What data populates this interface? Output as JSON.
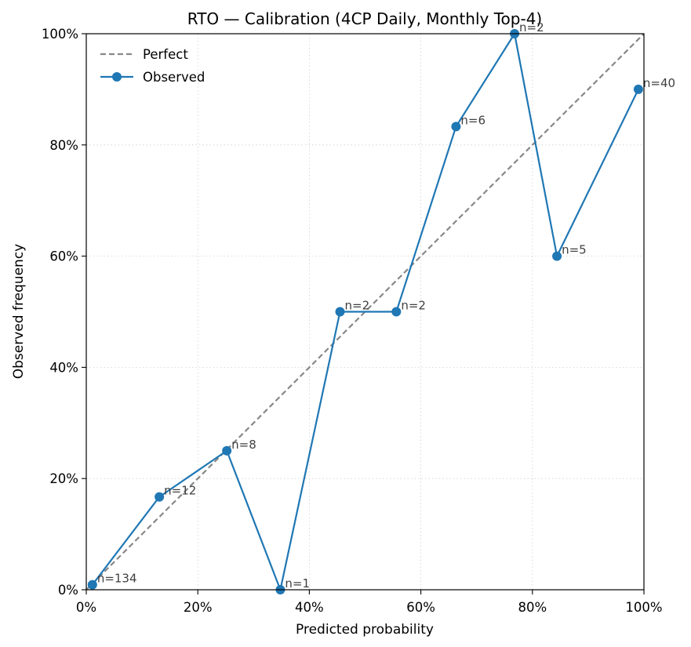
{
  "chart_data": {
    "type": "line",
    "title": "RTO — Calibration (4CP Daily,  Monthly Top-4)",
    "xlabel": "Predicted probability",
    "ylabel": "Observed frequency",
    "xlim": [
      0,
      1
    ],
    "ylim": [
      0,
      1
    ],
    "grid": true,
    "legend_position": "top-left",
    "x_ticks": [
      0,
      0.2,
      0.4,
      0.6,
      0.8,
      1.0
    ],
    "x_tick_labels": [
      "0%",
      "20%",
      "40%",
      "60%",
      "80%",
      "100%"
    ],
    "y_ticks": [
      0,
      0.2,
      0.4,
      0.6,
      0.8,
      1.0
    ],
    "y_tick_labels": [
      "0%",
      "20%",
      "40%",
      "60%",
      "80%",
      "100%"
    ],
    "series": [
      {
        "name": "Perfect",
        "style": "dashed",
        "color": "#888888",
        "x": [
          0,
          1
        ],
        "y": [
          0,
          1
        ]
      },
      {
        "name": "Observed",
        "style": "line-marker",
        "color": "#1f77b4",
        "x": [
          0.011,
          0.131,
          0.252,
          0.348,
          0.455,
          0.556,
          0.663,
          0.768,
          0.844,
          0.99
        ],
        "y": [
          0.009,
          0.167,
          0.25,
          0.0,
          0.5,
          0.5,
          0.833,
          1.0,
          0.6,
          0.9
        ],
        "labels": [
          "n=134",
          "n=12",
          "n=8",
          "n=1",
          "n=2",
          "n=2",
          "n=6",
          "n=2",
          "n=5",
          "n=40"
        ]
      }
    ]
  }
}
